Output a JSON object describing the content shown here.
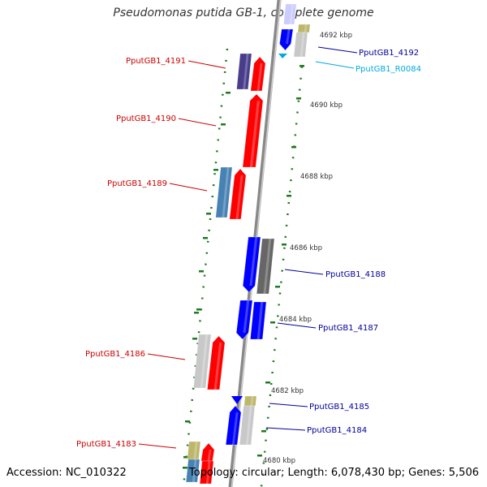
{
  "title": "Pseudomonas putida GB-1, complete genome",
  "accession": "Accession: NC_010322",
  "topology": "Topology: circular; Length: 6,078,430 bp; Genes: 5,506",
  "colors": {
    "strand_forward_red": "#ff0000",
    "cds_blue": "#0000ff",
    "left_label_red": "#cc0000",
    "right_label_blue": "#000099",
    "rna_cyan": "#00aadd",
    "gc_green": "#1f7a1f",
    "backbone_gray": "#888888",
    "steelblue": "#4682b4",
    "slate_purple": "#483d8b",
    "khaki": "#bdb76b",
    "light_gray": "#c8c8c8",
    "dark_gray": "#666666"
  },
  "ticks": [
    {
      "label": "4692 kbp"
    },
    {
      "label": "4690 kbp"
    },
    {
      "label": "4688 kbp"
    },
    {
      "label": "4686 kbp"
    },
    {
      "label": "4684 kbp"
    },
    {
      "label": "4682 kbp"
    },
    {
      "label": "4680 kbp"
    }
  ],
  "left_labels": [
    {
      "text": "PputGB1_4191"
    },
    {
      "text": "PputGB1_4190"
    },
    {
      "text": "PputGB1_4189"
    },
    {
      "text": "PputGB1_4186"
    },
    {
      "text": "PputGB1_4183"
    }
  ],
  "right_labels": [
    {
      "text": "PputGB1_4192",
      "kind": "gene"
    },
    {
      "text": "PputGB1_R0084",
      "kind": "rna"
    },
    {
      "text": "PputGB1_4188",
      "kind": "gene"
    },
    {
      "text": "PputGB1_4187",
      "kind": "gene"
    },
    {
      "text": "PputGB1_4185",
      "kind": "gene"
    },
    {
      "text": "PputGB1_4184",
      "kind": "gene"
    }
  ]
}
